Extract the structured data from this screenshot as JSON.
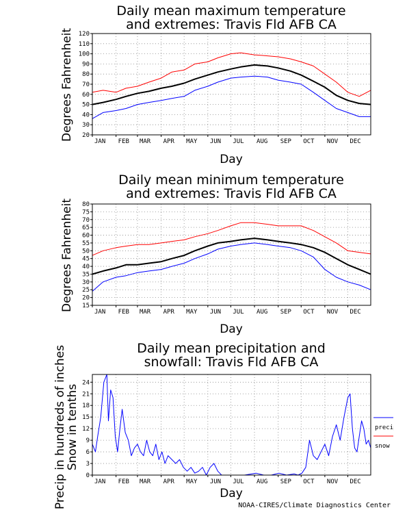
{
  "colors": {
    "max": "#ff0000",
    "mean": "#000000",
    "min": "#0000ff",
    "precip": "#0000ff",
    "snow": "#ff0000"
  },
  "footer": {
    "credit": "NOAA-CIRES/Climate Diagnostics Center"
  },
  "chart_data": [
    {
      "type": "line",
      "title_lines": [
        "Daily mean maximum temperature",
        "and extremes: Travis Fld AFB CA"
      ],
      "xlabel": "Day",
      "ylabel": "Degrees Fahrenheit",
      "ylim": [
        20,
        120
      ],
      "yticks": [
        20,
        30,
        40,
        50,
        60,
        70,
        80,
        90,
        100,
        110,
        120
      ],
      "xlim": [
        1,
        365
      ],
      "month_ticks": {
        "labels": [
          "JAN",
          "FEB",
          "MAR",
          "APR",
          "MAY",
          "JUN",
          "JUL",
          "AUG",
          "SEP",
          "OCT",
          "NOV",
          "DEC"
        ],
        "days": [
          1,
          32,
          60,
          91,
          121,
          152,
          182,
          213,
          244,
          274,
          305,
          335
        ]
      },
      "grid": true,
      "series": [
        {
          "role": "max",
          "color": "#ff0000",
          "x": [
            1,
            15,
            32,
            45,
            60,
            75,
            91,
            105,
            121,
            135,
            152,
            165,
            182,
            195,
            213,
            230,
            244,
            260,
            274,
            290,
            305,
            320,
            335,
            350,
            365
          ],
          "values": [
            62,
            64,
            62,
            66,
            68,
            72,
            76,
            82,
            84,
            90,
            92,
            96,
            100,
            101,
            99,
            98,
            97,
            95,
            92,
            88,
            80,
            72,
            62,
            58,
            64
          ]
        },
        {
          "role": "mean",
          "color": "#000000",
          "x": [
            1,
            15,
            32,
            45,
            60,
            75,
            91,
            105,
            121,
            135,
            152,
            165,
            182,
            195,
            213,
            230,
            244,
            260,
            274,
            290,
            305,
            320,
            335,
            350,
            365
          ],
          "values": [
            50,
            52,
            55,
            58,
            61,
            63,
            66,
            68,
            71,
            75,
            79,
            82,
            85,
            87,
            89,
            88,
            86,
            83,
            79,
            73,
            67,
            59,
            54,
            51,
            50
          ]
        },
        {
          "role": "min",
          "color": "#0000ff",
          "x": [
            1,
            15,
            32,
            45,
            60,
            75,
            91,
            105,
            121,
            135,
            152,
            165,
            182,
            195,
            213,
            230,
            244,
            260,
            274,
            290,
            305,
            320,
            335,
            350,
            365
          ],
          "values": [
            36,
            42,
            44,
            46,
            50,
            52,
            54,
            56,
            58,
            64,
            68,
            72,
            76,
            77,
            78,
            77,
            74,
            72,
            70,
            62,
            54,
            46,
            42,
            38,
            38
          ]
        }
      ]
    },
    {
      "type": "line",
      "title_lines": [
        "Daily mean minimum temperature",
        "and extremes: Travis Fld AFB CA"
      ],
      "xlabel": "Day",
      "ylabel": "Degrees Fahrenheit",
      "ylim": [
        15,
        80
      ],
      "yticks": [
        15,
        20,
        25,
        30,
        35,
        40,
        45,
        50,
        55,
        60,
        65,
        70,
        75,
        80
      ],
      "xlim": [
        1,
        365
      ],
      "month_ticks": {
        "labels": [
          "JAN",
          "FEB",
          "MAR",
          "APR",
          "MAY",
          "JUN",
          "JUL",
          "AUG",
          "SEP",
          "OCT",
          "NOV",
          "DEC"
        ],
        "days": [
          1,
          32,
          60,
          91,
          121,
          152,
          182,
          213,
          244,
          274,
          305,
          335
        ]
      },
      "grid": true,
      "series": [
        {
          "role": "max",
          "color": "#ff0000",
          "x": [
            1,
            15,
            32,
            45,
            60,
            75,
            91,
            105,
            121,
            135,
            152,
            165,
            182,
            195,
            213,
            230,
            244,
            260,
            274,
            290,
            305,
            320,
            335,
            350,
            365
          ],
          "values": [
            47,
            50,
            52,
            53,
            54,
            54,
            55,
            56,
            57,
            59,
            61,
            63,
            66,
            68,
            68,
            67,
            66,
            66,
            66,
            63,
            59,
            55,
            50,
            49,
            48
          ]
        },
        {
          "role": "mean",
          "color": "#000000",
          "x": [
            1,
            15,
            32,
            45,
            60,
            75,
            91,
            105,
            121,
            135,
            152,
            165,
            182,
            195,
            213,
            230,
            244,
            260,
            274,
            290,
            305,
            320,
            335,
            350,
            365
          ],
          "values": [
            35,
            37,
            39,
            41,
            41,
            42,
            43,
            45,
            47,
            50,
            53,
            55,
            56,
            57,
            58,
            57,
            56,
            55,
            54,
            52,
            49,
            45,
            41,
            38,
            35
          ]
        },
        {
          "role": "min",
          "color": "#0000ff",
          "x": [
            1,
            15,
            32,
            45,
            60,
            75,
            91,
            105,
            121,
            135,
            152,
            165,
            182,
            195,
            213,
            230,
            244,
            260,
            274,
            290,
            305,
            320,
            335,
            350,
            365
          ],
          "values": [
            24,
            30,
            33,
            34,
            36,
            37,
            38,
            40,
            42,
            45,
            48,
            51,
            53,
            54,
            55,
            54,
            53,
            52,
            50,
            46,
            38,
            33,
            30,
            28,
            25
          ]
        }
      ]
    },
    {
      "type": "line",
      "title_lines": [
        "Daily mean precipitation and",
        "snowfall: Travis Fld AFB CA"
      ],
      "xlabel": "Day",
      "ylabel_lines": [
        "Precip in hundreds of inches",
        "Snow in tenths"
      ],
      "ylim": [
        0,
        26
      ],
      "yticks": [
        0,
        3,
        6,
        9,
        12,
        15,
        18,
        21,
        24
      ],
      "xlim": [
        1,
        365
      ],
      "month_ticks": {
        "labels": [
          "JAN",
          "FEB",
          "MAR",
          "APR",
          "MAY",
          "JUN",
          "JUL",
          "AUG",
          "SEP",
          "OCT",
          "NOV",
          "DEC"
        ],
        "days": [
          1,
          32,
          60,
          91,
          121,
          152,
          182,
          213,
          244,
          274,
          305,
          335
        ]
      },
      "grid": true,
      "legend": {
        "placement": "right",
        "entries": [
          "precip",
          "snow"
        ]
      },
      "series": [
        {
          "role": "precip",
          "name": "precip",
          "color": "#0000ff",
          "x": [
            1,
            5,
            8,
            12,
            16,
            20,
            22,
            25,
            28,
            31,
            34,
            37,
            40,
            44,
            48,
            52,
            56,
            60,
            64,
            68,
            72,
            76,
            80,
            84,
            88,
            92,
            96,
            100,
            105,
            110,
            115,
            120,
            125,
            130,
            135,
            140,
            145,
            150,
            155,
            160,
            165,
            170,
            180,
            200,
            215,
            225,
            235,
            245,
            255,
            265,
            270,
            275,
            280,
            285,
            290,
            295,
            300,
            305,
            310,
            315,
            320,
            325,
            330,
            335,
            338,
            341,
            344,
            347,
            350,
            353,
            356,
            359,
            362,
            365
          ],
          "values": [
            8,
            6,
            10,
            15,
            24,
            26,
            14,
            22,
            20,
            10,
            6,
            12,
            17,
            11,
            9,
            5,
            7,
            8,
            6,
            5,
            9,
            6,
            5,
            8,
            4,
            6,
            3,
            5,
            4,
            3,
            4,
            2,
            1,
            2,
            0.5,
            1,
            2,
            0,
            2,
            3,
            1,
            0,
            0,
            0,
            0.5,
            0,
            0,
            0.5,
            0,
            0.3,
            0,
            0.5,
            2,
            9,
            5,
            4,
            6,
            8,
            5,
            10,
            13,
            9,
            15,
            20,
            21,
            12,
            7,
            6,
            10,
            14,
            12,
            8,
            9,
            7
          ]
        },
        {
          "role": "snow",
          "name": "snow",
          "color": "#ff0000",
          "x": [
            1,
            365
          ],
          "values": [
            0,
            0
          ]
        }
      ]
    }
  ]
}
